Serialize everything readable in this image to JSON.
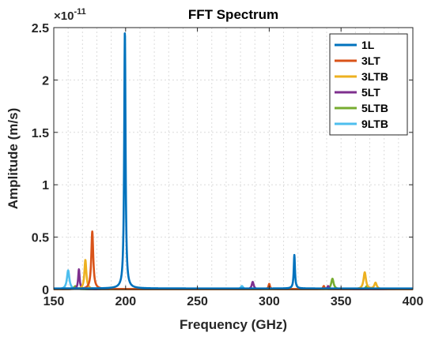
{
  "chart_data": {
    "type": "line",
    "title": "FFT Spectrum",
    "xlabel": "Frequency (GHz)",
    "ylabel": "Amplitude (m/s)",
    "xlim": [
      150,
      400
    ],
    "ylim": [
      0,
      2.5
    ],
    "y_multiplier_base": "×10",
    "y_multiplier_exp": "-11",
    "x_ticks": [
      150,
      200,
      250,
      300,
      350,
      400
    ],
    "x_tick_labels": [
      "150",
      "200",
      "250",
      "300",
      "350",
      "400"
    ],
    "y_ticks": [
      0,
      0.5,
      1,
      1.5,
      2,
      2.5
    ],
    "y_tick_labels": [
      "0",
      "0.5",
      "1",
      "1.5",
      "2",
      "2.5"
    ],
    "grid": true,
    "legend_position": "top-right",
    "series": [
      {
        "name": "1L",
        "color": "#0072BD",
        "baseline": 0.01,
        "peaks": [
          {
            "f": 199.5,
            "a": 2.46,
            "w": 0.55
          },
          {
            "f": 317.5,
            "a": 0.32,
            "w": 0.5
          }
        ]
      },
      {
        "name": "3LT",
        "color": "#D95319",
        "baseline": 0.004,
        "peaks": [
          {
            "f": 176.8,
            "a": 0.55,
            "w": 0.8
          },
          {
            "f": 300,
            "a": 0.05,
            "w": 0.6
          },
          {
            "f": 338,
            "a": 0.03,
            "w": 0.6
          }
        ]
      },
      {
        "name": "3LTB",
        "color": "#EDB120",
        "baseline": 0.003,
        "peaks": [
          {
            "f": 172,
            "a": 0.28,
            "w": 0.8
          },
          {
            "f": 366.5,
            "a": 0.16,
            "w": 1.0
          },
          {
            "f": 374,
            "a": 0.06,
            "w": 1.0
          }
        ]
      },
      {
        "name": "5LT",
        "color": "#7E2F8E",
        "baseline": 0.003,
        "peaks": [
          {
            "f": 167.5,
            "a": 0.19,
            "w": 0.6
          },
          {
            "f": 288.5,
            "a": 0.07,
            "w": 0.8
          },
          {
            "f": 341,
            "a": 0.03,
            "w": 0.7
          }
        ]
      },
      {
        "name": "5LTB",
        "color": "#77AC30",
        "baseline": 0.003,
        "peaks": [
          {
            "f": 165,
            "a": 0.03,
            "w": 1.0
          },
          {
            "f": 344,
            "a": 0.1,
            "w": 1.0
          },
          {
            "f": 368,
            "a": 0.03,
            "w": 1.0
          }
        ]
      },
      {
        "name": "9LTB",
        "color": "#4DBEEE",
        "baseline": 0.003,
        "peaks": [
          {
            "f": 160,
            "a": 0.18,
            "w": 1.0
          },
          {
            "f": 281,
            "a": 0.03,
            "w": 1.0
          }
        ]
      }
    ]
  }
}
